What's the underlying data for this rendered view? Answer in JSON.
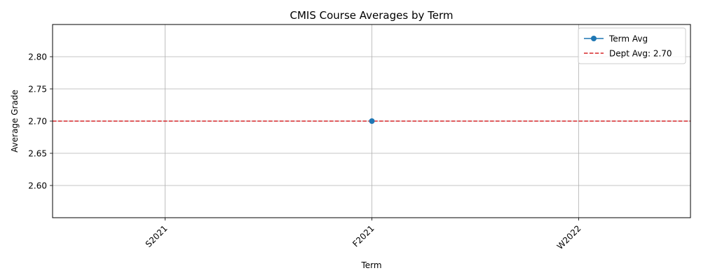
{
  "chart_data": {
    "type": "line",
    "title": "CMIS Course Averages by Term",
    "xlabel": "Term",
    "ylabel": "Average Grade",
    "categories": [
      "S2021",
      "F2021",
      "W2022"
    ],
    "ylim": [
      2.55,
      2.85
    ],
    "yticks": [
      2.6,
      2.65,
      2.7,
      2.75,
      2.8
    ],
    "ytick_labels": [
      "2.60",
      "2.65",
      "2.70",
      "2.75",
      "2.80"
    ],
    "grid": true,
    "legend_position": "top-right",
    "series": [
      {
        "name": "Term Avg",
        "x": [
          "F2021"
        ],
        "values": [
          2.7
        ],
        "color": "#1f77b4",
        "marker": "circle"
      }
    ],
    "reference_lines": [
      {
        "name": "Dept Avg: 2.70",
        "value": 2.7,
        "color": "#d62728",
        "style": "dashed"
      }
    ]
  }
}
